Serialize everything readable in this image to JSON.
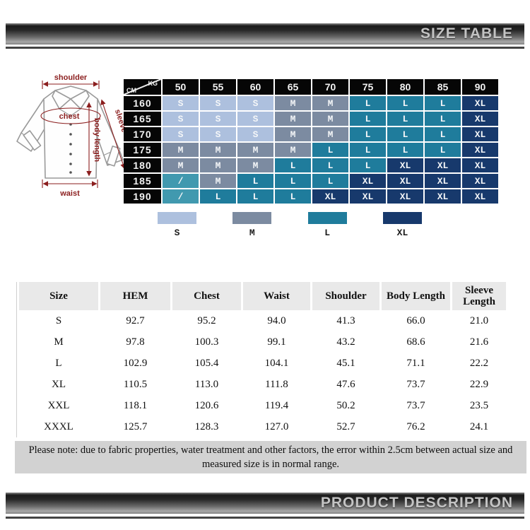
{
  "header_bar": {
    "title": "SIZE TABLE"
  },
  "footer_bar": {
    "title": "PRODUCT DESCRIPTION"
  },
  "diagram": {
    "labels": {
      "shoulder": "shoulder",
      "chest": "chest",
      "sleeve": "sleeve",
      "body_length": "body length",
      "waist": "waist"
    },
    "annotation_color": "#8b1e1e"
  },
  "size_matrix": {
    "corner": {
      "top_right": "KG",
      "bottom_left": "CM"
    },
    "weight_columns": [
      "50",
      "55",
      "60",
      "65",
      "70",
      "75",
      "80",
      "85",
      "90"
    ],
    "height_rows": [
      {
        "height": "160",
        "cells": [
          "S",
          "S",
          "S",
          "M",
          "M",
          "L",
          "L",
          "L",
          "XL"
        ]
      },
      {
        "height": "165",
        "cells": [
          "S",
          "S",
          "S",
          "M",
          "M",
          "L",
          "L",
          "L",
          "XL"
        ]
      },
      {
        "height": "170",
        "cells": [
          "S",
          "S",
          "S",
          "M",
          "M",
          "L",
          "L",
          "L",
          "XL"
        ]
      },
      {
        "height": "175",
        "cells": [
          "M",
          "M",
          "M",
          "M",
          "L",
          "L",
          "L",
          "L",
          "XL"
        ]
      },
      {
        "height": "180",
        "cells": [
          "M",
          "M",
          "M",
          "L",
          "L",
          "L",
          "XL",
          "XL",
          "XL"
        ]
      },
      {
        "height": "185",
        "cells": [
          "/",
          "M",
          "L",
          "L",
          "L",
          "XL",
          "XL",
          "XL",
          "XL"
        ]
      },
      {
        "height": "190",
        "cells": [
          "/",
          "L",
          "L",
          "L",
          "XL",
          "XL",
          "XL",
          "XL",
          "XL"
        ]
      }
    ],
    "colors": {
      "S": "#adc0de",
      "M": "#7c8ba1",
      "L": "#1f7c9c",
      "XL": "#17396c",
      "slash": "#4199af",
      "header_bg": "#060606"
    }
  },
  "legend": {
    "items": [
      {
        "label": "S",
        "color": "#adc0de"
      },
      {
        "label": "M",
        "color": "#7c8ba1"
      },
      {
        "label": "L",
        "color": "#1f7c9c"
      },
      {
        "label": "XL",
        "color": "#17396c"
      }
    ]
  },
  "measurement_table": {
    "columns": [
      "Size",
      "HEM",
      "Chest",
      "Waist",
      "Shoulder",
      "Body Length",
      "Sleeve Length"
    ],
    "rows": [
      [
        "S",
        "92.7",
        "95.2",
        "94.0",
        "41.3",
        "66.0",
        "21.0"
      ],
      [
        "M",
        "97.8",
        "100.3",
        "99.1",
        "43.2",
        "68.6",
        "21.6"
      ],
      [
        "L",
        "102.9",
        "105.4",
        "104.1",
        "45.1",
        "71.1",
        "22.2"
      ],
      [
        "XL",
        "110.5",
        "113.0",
        "111.8",
        "47.6",
        "73.7",
        "22.9"
      ],
      [
        "XXL",
        "118.1",
        "120.6",
        "119.4",
        "50.2",
        "73.7",
        "23.5"
      ],
      [
        "XXXL",
        "125.7",
        "128.3",
        "127.0",
        "52.7",
        "76.2",
        "24.1"
      ]
    ]
  },
  "note": {
    "text": "Please note: due to fabric properties, water treatment and other factors, the error within 2.5cm between actual size and measured size is in normal range."
  }
}
